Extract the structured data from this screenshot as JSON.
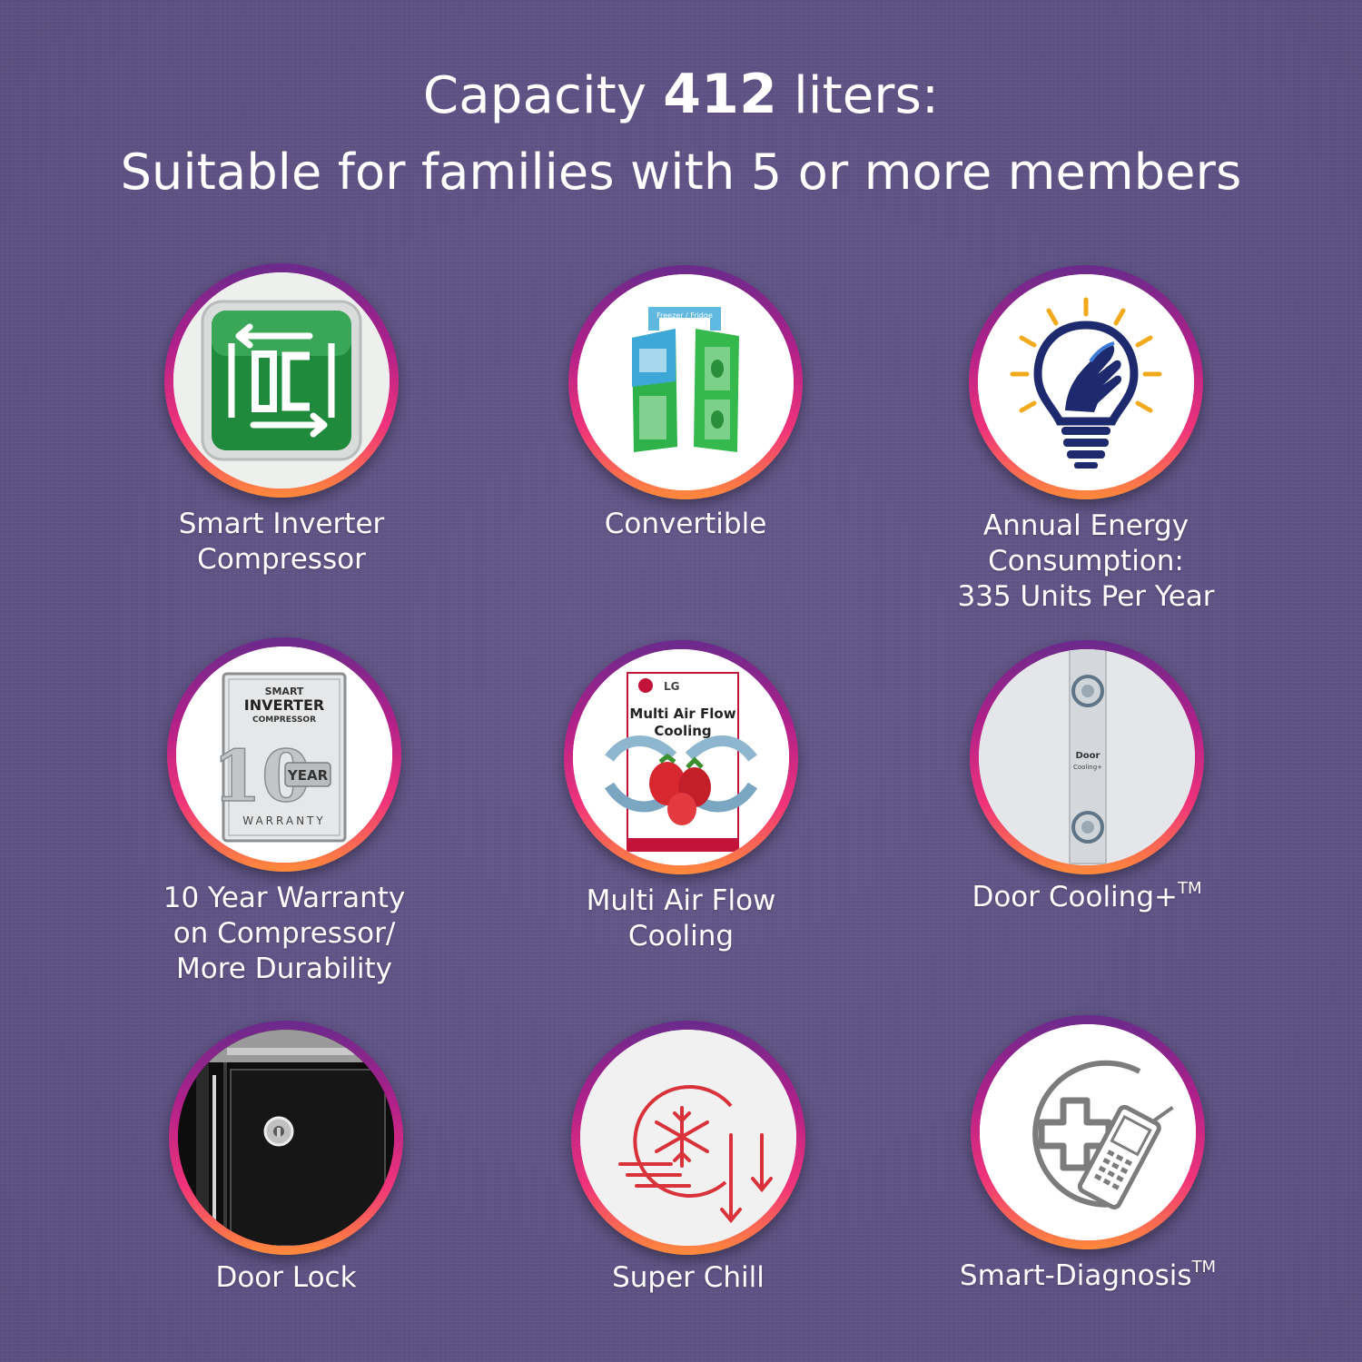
{
  "headline": {
    "line1_prefix": "Capacity ",
    "line1_value": "412",
    "line1_suffix": " liters:",
    "line2": "Suitable for families with 5 or more members"
  },
  "features": [
    {
      "icon": "smart-inverter-ic-icon",
      "label_lines": [
        "Smart Inverter",
        "Compressor"
      ]
    },
    {
      "icon": "convertible-fridge-icon",
      "label_lines": [
        "Convertible"
      ],
      "icon_text": "Freezer / Fridge"
    },
    {
      "icon": "energy-bulb-hand-icon",
      "label_lines": [
        "Annual Energy",
        "Consumption:",
        "335 Units Per Year"
      ]
    },
    {
      "icon": "warranty-badge-icon",
      "label_lines": [
        "10 Year Warranty",
        "on Compressor/",
        "More Durability"
      ],
      "badge_text": {
        "smart": "SMART",
        "inverter": "INVERTER",
        "compressor": "COMPRESSOR",
        "year_num": "10",
        "year": "YEAR",
        "warranty": "WARRANTY"
      }
    },
    {
      "icon": "multi-air-flow-icon",
      "label_lines": [
        "Multi Air Flow",
        "Cooling"
      ],
      "card_text": {
        "brand": "LG",
        "title_line1": "Multi Air Flow",
        "title_line2": "Cooling"
      }
    },
    {
      "icon": "door-cooling-icon",
      "label_main": "Door Cooling+",
      "label_sup": "TM",
      "panel_text": {
        "line1": "Door",
        "line2": "Cooling+"
      }
    },
    {
      "icon": "door-lock-icon",
      "label_lines": [
        "Door Lock"
      ]
    },
    {
      "icon": "super-chill-snowflake-icon",
      "label_lines": [
        "Super Chill"
      ]
    },
    {
      "icon": "smart-diagnosis-icon",
      "label_main": "Smart-Diagnosis",
      "label_sup": "TM"
    }
  ],
  "colors": {
    "background": "#5f5484",
    "ring_top": "#6a2a8c",
    "ring_mid": "#f0337a",
    "ring_bottom": "#ff8a3a",
    "ic_green": "#1f8a3c",
    "bulb_navy": "#1e2a6e",
    "bulb_rays": "#f2a91c",
    "chill_red": "#d9323a"
  }
}
